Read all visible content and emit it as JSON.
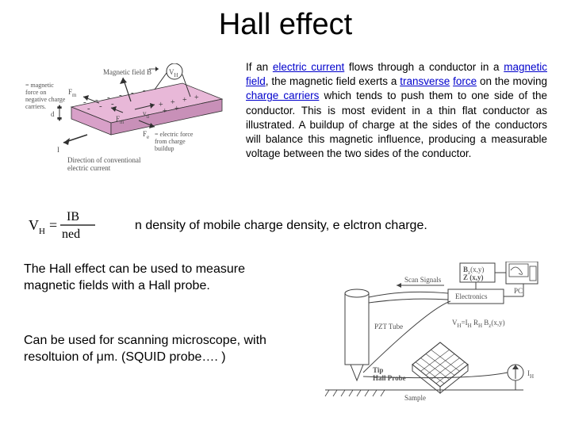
{
  "title": "Hall effect",
  "paragraph": {
    "parts": [
      {
        "t": "text",
        "v": "If an "
      },
      {
        "t": "link",
        "v": "electric current"
      },
      {
        "t": "text",
        "v": " flows through a conductor in a "
      },
      {
        "t": "link",
        "v": "magnetic field"
      },
      {
        "t": "text",
        "v": ", the magnetic field exerts a "
      },
      {
        "t": "link",
        "v": "transverse"
      },
      {
        "t": "text",
        "v": " "
      },
      {
        "t": "link",
        "v": "force"
      },
      {
        "t": "text",
        "v": " on the moving "
      },
      {
        "t": "link",
        "v": "charge carriers"
      },
      {
        "t": "text",
        "v": " which tends to push them to one side of the conductor. This is most evident in a thin flat conductor as illustrated. A buildup of charge at the sides of the conductors will balance this magnetic influence, producing a measurable voltage between the two sides of the conductor."
      }
    ],
    "link_color": "#0000cc"
  },
  "formula": {
    "lhs": "V",
    "lhs_sub": "H",
    "eq": "=",
    "numerator": "IB",
    "denominator": "ned",
    "font_family": "Times New Roman, serif",
    "font_size_main": 18,
    "font_size_sub": 11
  },
  "formula_caption": "n density of mobile charge density, e elctron charge.",
  "below1": "The Hall effect can be used to measure magnetic fields with a Hall probe.",
  "below2_prefix": "Can be used for scanning microscope, with resoltuion of ",
  "below2_mu": "μ",
  "below2_suffix": "m. (SQUID probe…. )",
  "diagram1": {
    "colors": {
      "slab_top": "#e8b8d8",
      "slab_side": "#c890b8",
      "slab_front": "#d8a0c8",
      "outline": "#303030",
      "text": "#505050",
      "arrow": "#303030",
      "minus": "#303030",
      "plus": "#303030"
    },
    "labels": {
      "vh": "V",
      "vh_sub": "H",
      "B": "Magnetic field  B",
      "Fm1": "F",
      "Fm1_sub": "m",
      "Fm_desc1": "= magnetic",
      "Fm_desc2": "force on",
      "Fm_desc3": "negative charge",
      "Fm_desc4": "carriers.",
      "Fm2": "F",
      "Fm2_sub": "m",
      "vd": "v",
      "vd_sub": "d",
      "Fe": "F",
      "Fe_sub": "e",
      "Fe_desc1": "= electric force",
      "Fe_desc2": "from charge",
      "Fe_desc3": "buildup",
      "d": "d",
      "I": "I",
      "dir1": "Direction of conventional",
      "dir2": "electric current"
    }
  },
  "diagram2": {
    "colors": {
      "line": "#404040",
      "text": "#404040",
      "hatch": "#404040",
      "fill_white": "#ffffff"
    },
    "labels": {
      "bz1": "B",
      "bz1_sub": "z",
      "bz1_args": "(x,y)",
      "z": "Z (x,y)",
      "scan": "Scan Signals",
      "elec": "Electronics",
      "pc": "PC",
      "pzt": "PZT Tube",
      "tip": "Tip",
      "hall": "Hall Probe",
      "vh": "V",
      "vh_sub": "H",
      "vh_eq": "=I",
      "vh_eq2_sub": "H",
      "vh_r": " R",
      "vh_r_sub": "H",
      "vh_b": " B",
      "vh_b_sub": "z",
      "vh_args": "(x,y)",
      "sample": "Sample",
      "ih": "I",
      "ih_sub": "H"
    }
  }
}
